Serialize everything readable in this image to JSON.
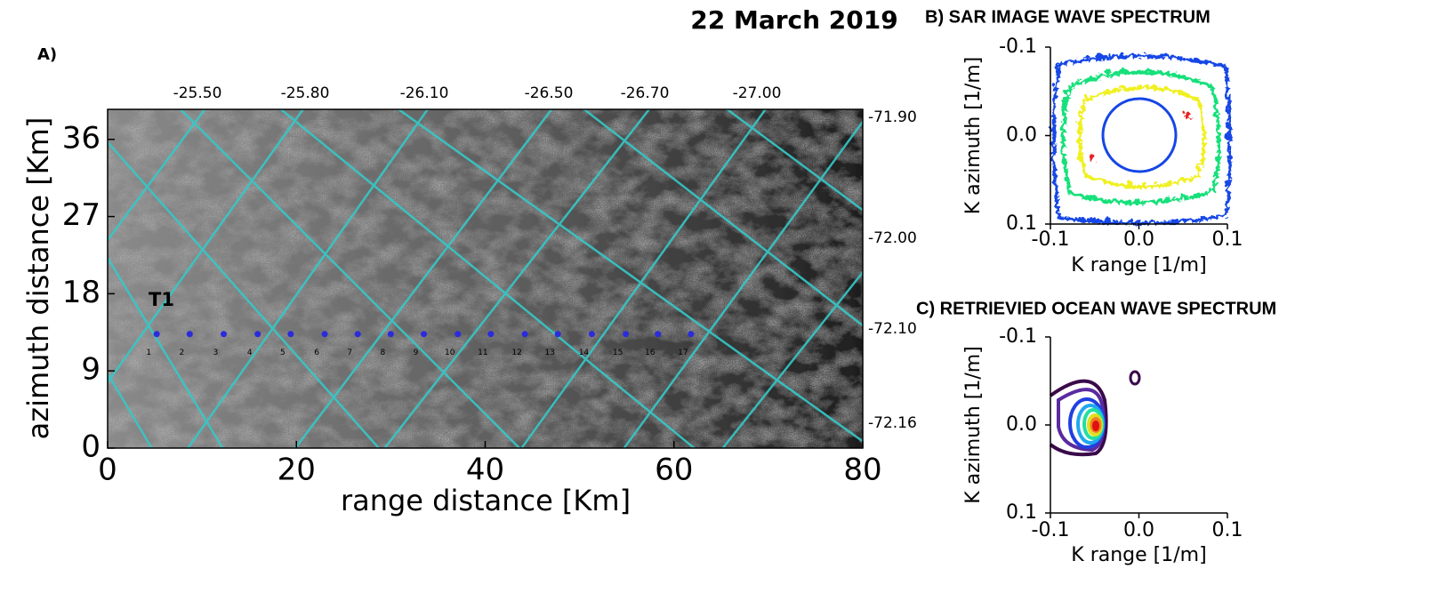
{
  "title": "22 March 2019",
  "chart_data": [
    {
      "type": "image",
      "panel": "A)",
      "xlabel": "range distance [Km]",
      "ylabel": "azimuth distance [Km]",
      "xlim": [
        0,
        80
      ],
      "xticks": [
        0,
        20,
        40,
        60,
        80
      ],
      "ylim": [
        0,
        39.5
      ],
      "yticks": [
        0,
        9,
        18,
        27,
        36
      ],
      "top_labels": [
        "-25.50",
        "-25.80",
        "-26.10",
        "-26.50",
        "-26.70",
        "-27.00"
      ],
      "right_labels": [
        "-71.90",
        "-72.00",
        "-72.10",
        "-72.16"
      ],
      "track": {
        "name": "T1",
        "color": "#2b2bdc",
        "labels": [
          "1",
          "2",
          "3",
          "4",
          "5",
          "6",
          "7",
          "8",
          "9",
          "10",
          "11",
          "12",
          "13",
          "14",
          "15",
          "16",
          "17"
        ],
        "x": [
          5.2,
          8.7,
          12.3,
          15.9,
          19.4,
          23.0,
          26.5,
          30.0,
          33.5,
          37.1,
          40.6,
          44.2,
          47.7,
          51.3,
          54.9,
          58.3,
          61.8
        ],
        "y": [
          13.3,
          13.3,
          13.3,
          13.3,
          13.3,
          13.3,
          13.3,
          13.3,
          13.3,
          13.3,
          13.3,
          13.3,
          13.3,
          13.3,
          13.3,
          13.3,
          13.3
        ]
      }
    },
    {
      "type": "contour",
      "title": "B) SAR IMAGE WAVE SPECTRUM",
      "xlabel": "K range [1/m]",
      "ylabel": "K azimuth [1/m]",
      "xlim": [
        -0.1,
        0.1
      ],
      "xticks": [
        -0.1,
        {
          "value": 0,
          "label": "0.0"
        },
        0.1
      ],
      "ylim": [
        -0.1,
        0.1
      ],
      "yticks": [
        -0.1,
        {
          "value": 0,
          "label": "0.0"
        },
        0.1
      ],
      "y_inverted": true
    },
    {
      "type": "contour",
      "title": "C) RETRIEVIED OCEAN WAVE SPECTRUM",
      "xlabel": "K range [1/m]",
      "ylabel": "K azimuth [1/m]",
      "xlim": [
        -0.1,
        0.1
      ],
      "xticks": [
        -0.1,
        {
          "value": 0,
          "label": "0.0"
        },
        0.1
      ],
      "ylim": [
        -0.1,
        0.1
      ],
      "yticks": [
        -0.1,
        {
          "value": 0,
          "label": "0.0"
        },
        0.1
      ],
      "y_inverted": true
    }
  ]
}
